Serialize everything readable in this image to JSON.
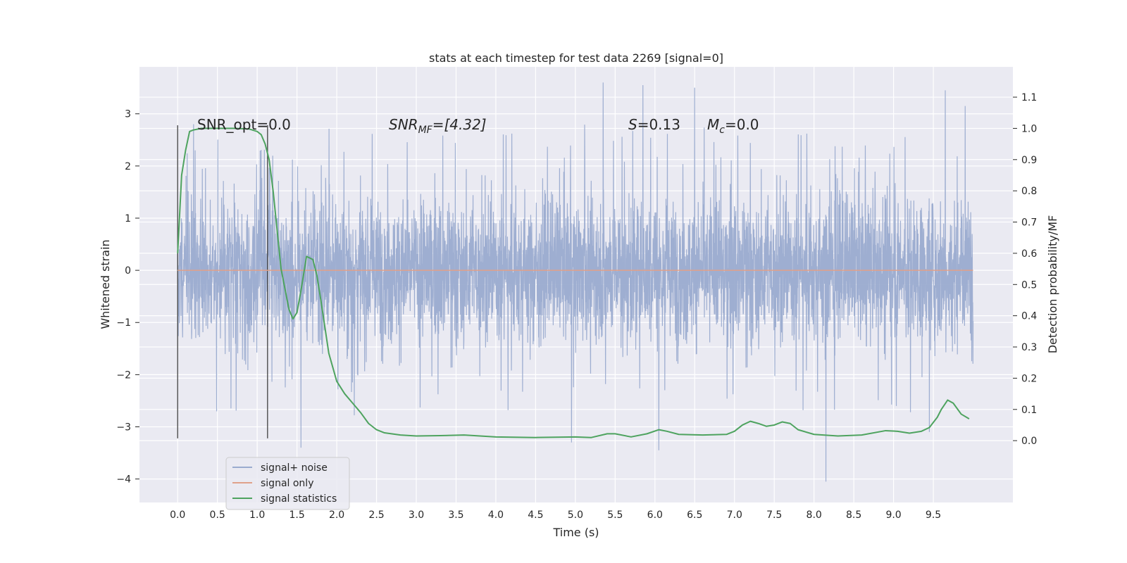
{
  "chart_data": {
    "type": "line",
    "title": "stats at each timestep for test data 2269 [signal=0]",
    "xlabel": "Time (s)",
    "ylabel": "Whitened strain",
    "ylabel_right": "Detection probability/MF",
    "xlim": [
      -0.48,
      10.5
    ],
    "ylim": [
      -4.45,
      3.9
    ],
    "ylim_right": [
      -0.198,
      1.197
    ],
    "x_ticks": [
      "0.0",
      "0.5",
      "1.0",
      "1.5",
      "2.0",
      "2.5",
      "3.0",
      "3.5",
      "4.0",
      "4.5",
      "5.0",
      "5.5",
      "6.0",
      "6.5",
      "7.0",
      "7.5",
      "8.0",
      "8.5",
      "9.0",
      "9.5"
    ],
    "y_ticks": [
      "3",
      "2",
      "1",
      "0",
      "−1",
      "−2",
      "−3",
      "−4"
    ],
    "y_ticks_right": [
      "1.1",
      "1.0",
      "0.9",
      "0.8",
      "0.7",
      "0.6",
      "0.5",
      "0.4",
      "0.3",
      "0.2",
      "0.1",
      "0.0"
    ],
    "grid": true,
    "legend_position": "lower-left",
    "annotations": {
      "snr_opt": "SNR_opt=0.0",
      "snr_mf_main": "SNR",
      "snr_mf_sub": "MF",
      "snr_mf_value": "=[4.32]",
      "s_main": "S",
      "s_value": "=0.13",
      "mc_main": "M",
      "mc_sub": "c",
      "mc_value": "=0.0"
    },
    "markers_x": [
      0.0,
      1.13
    ],
    "series": [
      {
        "name": "signal+ noise",
        "color": "#9aabcf",
        "x_start": 0.0,
        "x_end": 10.0,
        "envelope_core": [
          -1.45,
          1.6
        ],
        "spikes": [
          [
            5.35,
            3.6
          ],
          [
            5.85,
            3.55
          ],
          [
            6.5,
            3.5
          ],
          [
            9.65,
            3.45
          ],
          [
            9.9,
            3.15
          ],
          [
            0.2,
            2.8
          ],
          [
            8.15,
            -4.05
          ],
          [
            6.05,
            -3.45
          ],
          [
            4.95,
            -3.3
          ],
          [
            1.55,
            -3.4
          ],
          [
            9.45,
            -3.1
          ]
        ]
      },
      {
        "name": "signal only",
        "color": "#e0a18a",
        "x": [
          0.0,
          10.0
        ],
        "y": [
          0.0,
          0.0
        ]
      },
      {
        "name": "signal statistics",
        "color": "#4ea35f",
        "axis": "right",
        "x": [
          0.0,
          0.05,
          0.1,
          0.15,
          0.2,
          0.3,
          0.5,
          0.7,
          0.9,
          1.0,
          1.05,
          1.1,
          1.15,
          1.2,
          1.3,
          1.4,
          1.45,
          1.5,
          1.55,
          1.62,
          1.7,
          1.75,
          1.8,
          1.9,
          2.0,
          2.1,
          2.2,
          2.3,
          2.4,
          2.5,
          2.6,
          2.8,
          3.0,
          3.3,
          3.6,
          4.0,
          4.5,
          5.0,
          5.2,
          5.4,
          5.5,
          5.7,
          5.9,
          6.05,
          6.15,
          6.3,
          6.6,
          6.9,
          7.0,
          7.1,
          7.2,
          7.3,
          7.4,
          7.5,
          7.6,
          7.7,
          7.8,
          8.0,
          8.3,
          8.6,
          8.9,
          9.05,
          9.2,
          9.35,
          9.45,
          9.55,
          9.6,
          9.68,
          9.75,
          9.85,
          9.95
        ],
        "y": [
          0.6,
          0.85,
          0.93,
          0.99,
          0.995,
          1.0,
          1.0,
          1.0,
          0.998,
          0.99,
          0.98,
          0.95,
          0.9,
          0.8,
          0.55,
          0.42,
          0.39,
          0.41,
          0.48,
          0.59,
          0.58,
          0.53,
          0.45,
          0.28,
          0.19,
          0.15,
          0.12,
          0.09,
          0.055,
          0.035,
          0.025,
          0.018,
          0.015,
          0.016,
          0.018,
          0.012,
          0.01,
          0.012,
          0.01,
          0.022,
          0.022,
          0.012,
          0.022,
          0.035,
          0.03,
          0.02,
          0.018,
          0.02,
          0.03,
          0.05,
          0.062,
          0.055,
          0.046,
          0.05,
          0.06,
          0.055,
          0.035,
          0.02,
          0.015,
          0.018,
          0.032,
          0.03,
          0.024,
          0.03,
          0.042,
          0.075,
          0.1,
          0.13,
          0.12,
          0.085,
          0.07
        ]
      }
    ]
  }
}
